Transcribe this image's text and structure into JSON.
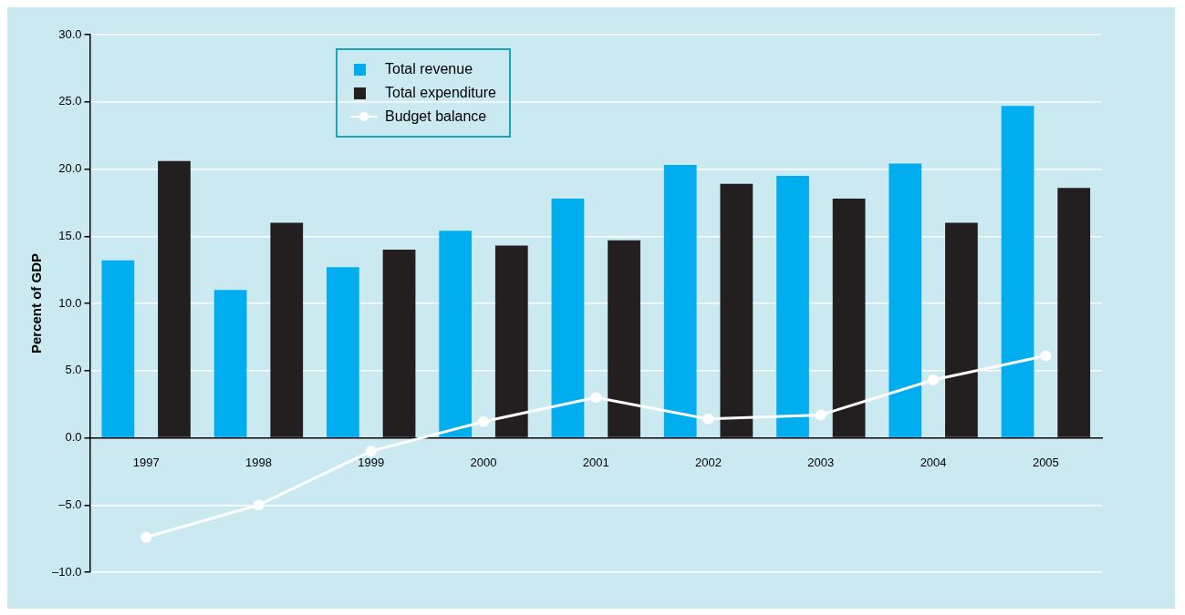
{
  "chart_data": {
    "type": "bar",
    "ylabel": "Percent of GDP",
    "categories": [
      "1997",
      "1998",
      "1999",
      "2000",
      "2001",
      "2002",
      "2003",
      "2004",
      "2005"
    ],
    "series": [
      {
        "name": "Total revenue",
        "color": "#00aeef",
        "values": [
          13.2,
          11.0,
          12.7,
          15.4,
          17.8,
          20.3,
          19.5,
          20.4,
          24.7
        ]
      },
      {
        "name": "Total expenditure",
        "color": "#231f20",
        "values": [
          20.6,
          16.0,
          14.0,
          14.3,
          14.7,
          18.9,
          17.8,
          16.0,
          18.6
        ]
      },
      {
        "name": "Budget balance",
        "type": "line",
        "color": "#ffffff",
        "marker": "circle",
        "values": [
          -7.4,
          -5.0,
          -1.0,
          1.2,
          3.0,
          1.4,
          1.7,
          4.3,
          6.1
        ]
      }
    ],
    "ylim": [
      -10,
      30
    ],
    "yticks": [
      {
        "value": -10,
        "label": "–10.0"
      },
      {
        "value": -5,
        "label": "–5.0"
      },
      {
        "value": 0,
        "label": "0.0"
      },
      {
        "value": 5,
        "label": "5.0"
      },
      {
        "value": 10,
        "label": "10.0"
      },
      {
        "value": 15,
        "label": "15.0"
      },
      {
        "value": 20,
        "label": "20.0"
      },
      {
        "value": 25,
        "label": "25.0"
      },
      {
        "value": 30,
        "label": "30.0"
      }
    ],
    "grid": "y",
    "legend": "top left"
  }
}
